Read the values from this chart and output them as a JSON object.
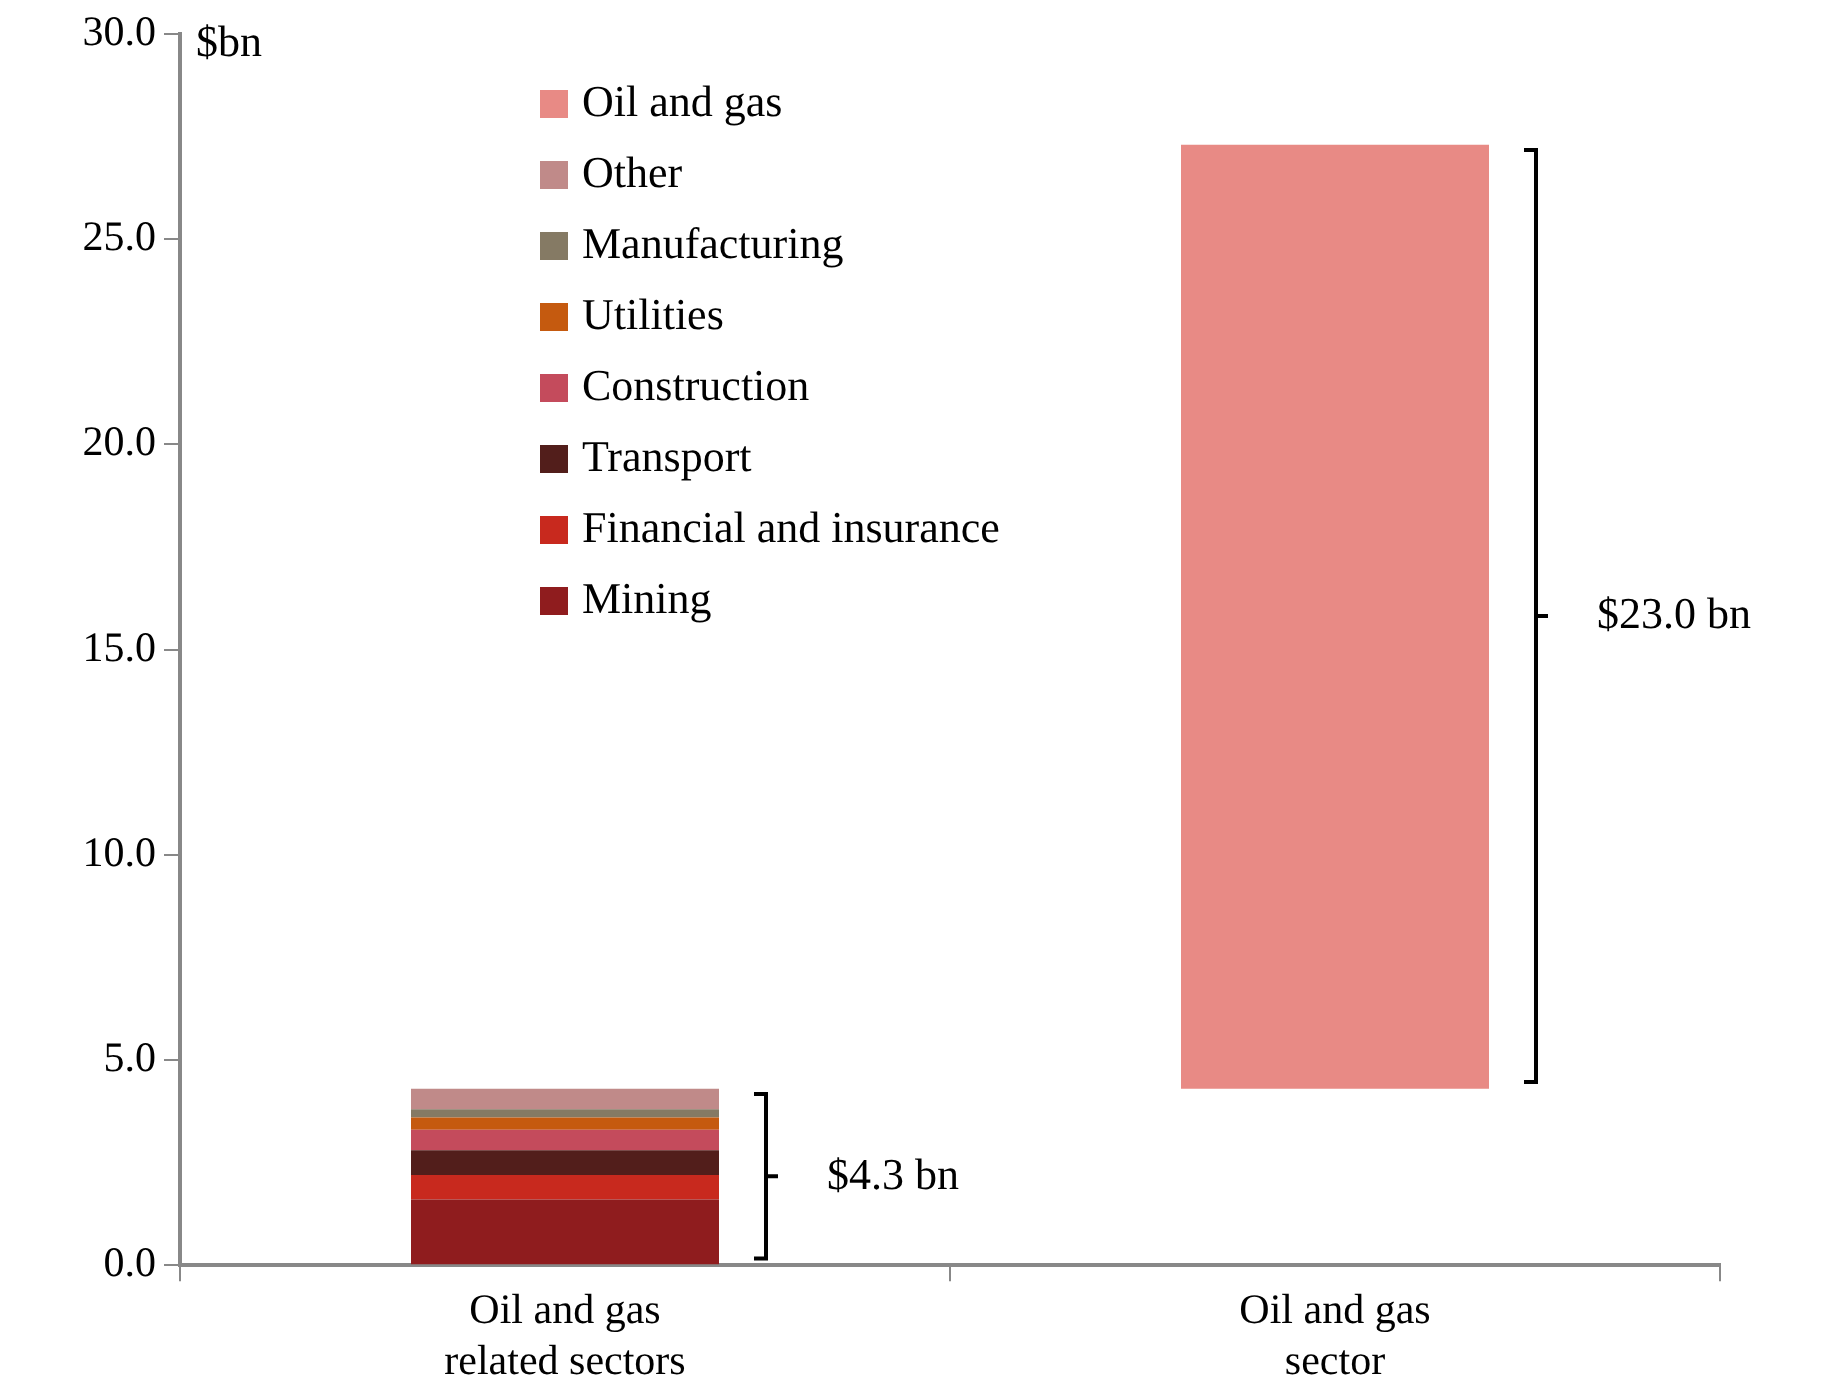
{
  "chart_data": {
    "type": "bar",
    "stacked": true,
    "ylabel": "$bn",
    "categories": [
      "Oil and gas related sectors",
      "Oil and gas sector"
    ],
    "series": [
      {
        "name": "Mining",
        "color": "#8f1c1e",
        "values": [
          1.6,
          null
        ]
      },
      {
        "name": "Financial and insurance",
        "color": "#c8291e",
        "values": [
          0.6,
          null
        ]
      },
      {
        "name": "Transport",
        "color": "#521e1b",
        "values": [
          0.6,
          null
        ]
      },
      {
        "name": "Construction",
        "color": "#c44b5c",
        "values": [
          0.5,
          null
        ]
      },
      {
        "name": "Utilities",
        "color": "#c55a0f",
        "values": [
          0.3,
          null
        ]
      },
      {
        "name": "Manufacturing",
        "color": "#857a64",
        "values": [
          0.2,
          null
        ]
      },
      {
        "name": "Other",
        "color": "#c08a89",
        "values": [
          0.5,
          null
        ]
      },
      {
        "name": "Oil and gas",
        "color": "#e88a85",
        "values": [
          null,
          23.0
        ],
        "base": [
          null,
          4.3
        ]
      }
    ],
    "ylim": [
      0,
      30
    ],
    "yticks": [
      {
        "value": 0,
        "label": "0.0"
      },
      {
        "value": 5,
        "label": "5.0"
      },
      {
        "value": 10,
        "label": "10.0"
      },
      {
        "value": 15,
        "label": "15.0"
      },
      {
        "value": 20,
        "label": "20.0"
      },
      {
        "value": 25,
        "label": "25.0"
      },
      {
        "value": 30,
        "label": "30.0"
      }
    ],
    "grid": false,
    "legend": "top left",
    "annotations": [
      "$4.3 bn",
      "$23.0 bn"
    ]
  }
}
